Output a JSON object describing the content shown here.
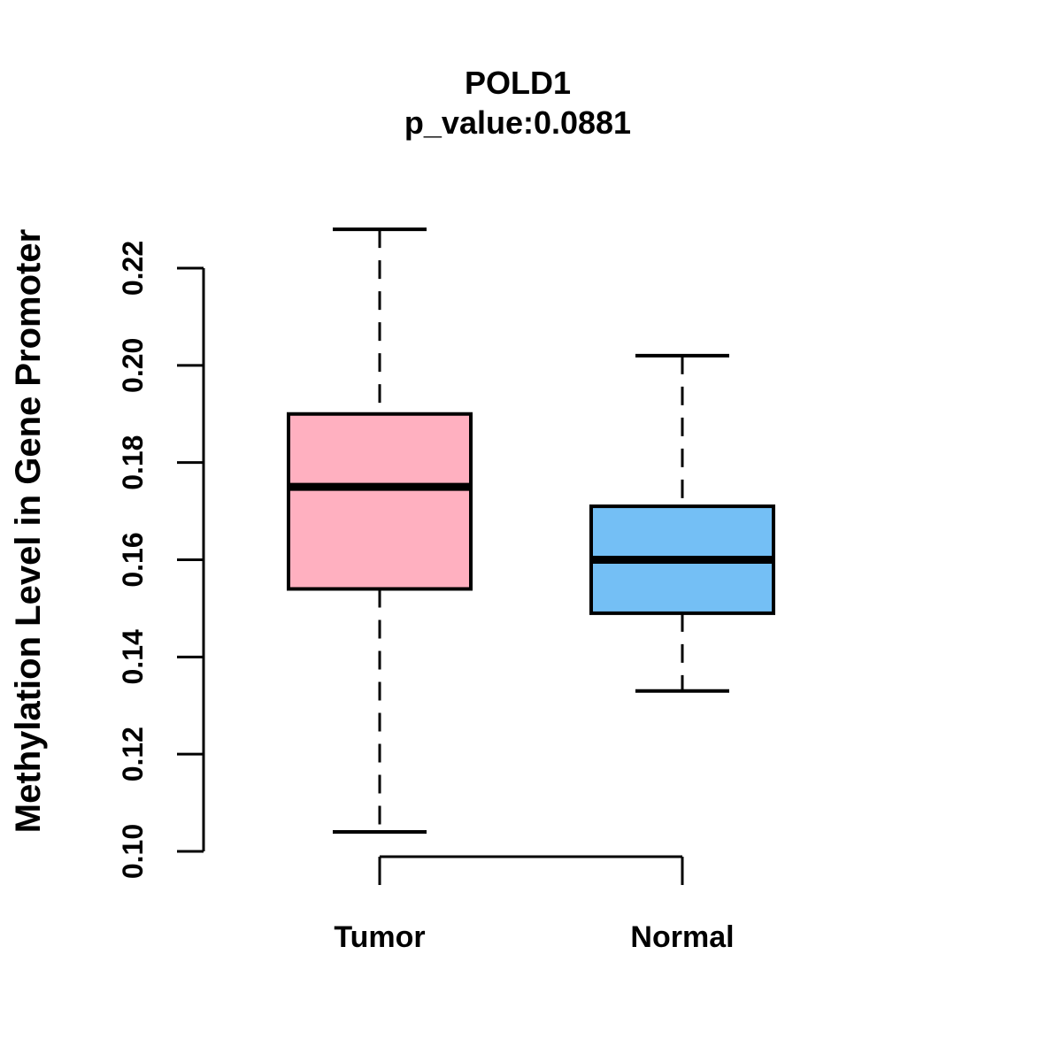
{
  "title": {
    "line1": "POLD1",
    "line2": "p_value:0.0881"
  },
  "ylabel": "Methylation Level in Gene Promoter",
  "chart_data": {
    "type": "boxplot",
    "title": "POLD1",
    "subtitle": "p_value:0.0881",
    "ylabel": "Methylation Level in Gene Promoter",
    "xlabel": "",
    "categories": [
      "Tumor",
      "Normal"
    ],
    "series": [
      {
        "name": "Tumor",
        "fill_color": "#FFB0C0",
        "min": 0.104,
        "q1": 0.154,
        "median": 0.175,
        "q3": 0.19,
        "max": 0.228
      },
      {
        "name": "Normal",
        "fill_color": "#74BFF5",
        "min": 0.133,
        "q1": 0.149,
        "median": 0.16,
        "q3": 0.171,
        "max": 0.202
      }
    ],
    "yticks": [
      0.1,
      0.12,
      0.14,
      0.16,
      0.18,
      0.2,
      0.22
    ],
    "ylim": [
      0.1,
      0.22
    ],
    "grid": false,
    "legend": "none",
    "stroke_color": "#000000",
    "whisker_style": "dashed"
  }
}
